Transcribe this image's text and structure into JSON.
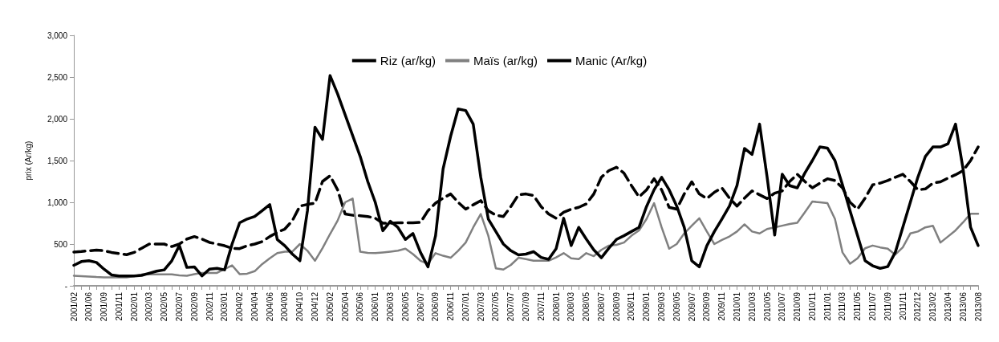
{
  "chart_data": {
    "type": "line",
    "ylabel": "prix (Ar/kg)",
    "legend": "top",
    "grid": false,
    "marker": "none",
    "categories": [
      "2001/02",
      null,
      "2001/06",
      null,
      "2001/09",
      null,
      "2001/11",
      null,
      "2002/01",
      null,
      "2002/03",
      null,
      "2002/05",
      null,
      "2002/07",
      null,
      "2002/09",
      null,
      "2002/11",
      null,
      "2003/01",
      null,
      "2004/02",
      null,
      "2004/04",
      null,
      "2004/06",
      null,
      "2004/08",
      null,
      "2004/10",
      null,
      "2004/12",
      null,
      "2005/02",
      null,
      "2005/04",
      null,
      "2005/06",
      null,
      "2006/01",
      null,
      "2006/03",
      null,
      "2006/05",
      null,
      "2006/07",
      null,
      "2006/09",
      null,
      "2006/11",
      null,
      "2007/01",
      null,
      "2007/03",
      null,
      "2007/05",
      null,
      "2007/07",
      null,
      "2007/09",
      null,
      "2007/11",
      null,
      "2008/01",
      null,
      "2008/03",
      null,
      "2008/05",
      null,
      "2008/07",
      null,
      "2008/09",
      null,
      "2008/11",
      null,
      "2009/01",
      null,
      "2009/03",
      null,
      "2009/05",
      null,
      "2009/07",
      null,
      "2009/09",
      null,
      "2009/11",
      null,
      "2010/01",
      null,
      "2010/03",
      null,
      "2010/05",
      null,
      "2010/07",
      null,
      "2010/09",
      null,
      "2010/11",
      null,
      "2011/01",
      null,
      "2011/03",
      null,
      "2011/05",
      null,
      "2011/07",
      null,
      "2011/09",
      null,
      "2011/11",
      null,
      "2012/12",
      null,
      "2013/02",
      null,
      "2013/04",
      null,
      "2013/06",
      null,
      "2013/08"
    ],
    "ylim": [
      0,
      3000
    ],
    "yticks": [
      {
        "value": 0,
        "label": "-"
      },
      {
        "value": 500,
        "label": "500"
      },
      {
        "value": 1000,
        "label": "1,000"
      },
      {
        "value": 1500,
        "label": "1,500"
      },
      {
        "value": 2000,
        "label": "2,000"
      },
      {
        "value": 2500,
        "label": "2,500"
      },
      {
        "value": 3000,
        "label": "3,000"
      }
    ],
    "series": [
      {
        "name": "Riz (ar/kg)",
        "color": "#000000",
        "line_style": "dashed",
        "values": [
          405,
          410,
          420,
          427,
          420,
          400,
          385,
          373,
          400,
          450,
          500,
          500,
          500,
          470,
          500,
          560,
          590,
          560,
          520,
          500,
          480,
          450,
          445,
          480,
          500,
          530,
          590,
          640,
          680,
          780,
          955,
          975,
          990,
          1250,
          1318,
          1150,
          860,
          845,
          840,
          830,
          810,
          750,
          750,
          755,
          755,
          755,
          760,
          900,
          990,
          1050,
          1100,
          1000,
          918,
          970,
          1020,
          900,
          845,
          830,
          950,
          1090,
          1100,
          1082,
          950,
          860,
          809,
          880,
          918,
          940,
          980,
          1100,
          1300,
          1380,
          1420,
          1350,
          1200,
          1064,
          1150,
          1282,
          1150,
          940,
          918,
          1100,
          1245,
          1100,
          1045,
          1120,
          1173,
          1050,
          955,
          1050,
          1136,
          1090,
          1045,
          1110,
          1136,
          1250,
          1336,
          1250,
          1173,
          1230,
          1282,
          1260,
          1173,
          1000,
          918,
          1050,
          1209,
          1230,
          1260,
          1300,
          1336,
          1250,
          1150,
          1160,
          1230,
          1245,
          1290,
          1330,
          1380,
          1500,
          1663
        ]
      },
      {
        "name": "Maïs (ar/kg)",
        "color": "#808080",
        "line_style": "solid",
        "values": [
          120,
          115,
          110,
          105,
          102,
          100,
          100,
          100,
          115,
          136,
          136,
          136,
          136,
          136,
          125,
          120,
          140,
          155,
          155,
          155,
          200,
          245,
          140,
          145,
          175,
          260,
          330,
          391,
          409,
          409,
          500,
          420,
          300,
          450,
          620,
          780,
          1000,
          1045,
          409,
          395,
          391,
          400,
          409,
          420,
          445,
          380,
          300,
          264,
          391,
          360,
          336,
          420,
          518,
          700,
          860,
          600,
          209,
          195,
          250,
          336,
          320,
          300,
          300,
          300,
          340,
          391,
          330,
          320,
          391,
          355,
          430,
          482,
          490,
          518,
          600,
          664,
          800,
          990,
          700,
          445,
          500,
          627,
          720,
          809,
          650,
          500,
          550,
          591,
          650,
          736,
          650,
          627,
          680,
          700,
          720,
          740,
          755,
          880,
          1009,
          1000,
          990,
          800,
          400,
          264,
          330,
          450,
          482,
          460,
          445,
          373,
          460,
          627,
          650,
          700,
          718,
          518,
          590,
          664,
          760,
          864,
          864
        ]
      },
      {
        "name": "Manic (Ar/kg)",
        "color": "#000000",
        "line_style": "solid",
        "values": [
          245,
          290,
          300,
          280,
          200,
          130,
          118,
          118,
          118,
          125,
          150,
          175,
          191,
          300,
          482,
          220,
          227,
          118,
          200,
          209,
          191,
          500,
          755,
          800,
          830,
          900,
          973,
          555,
          480,
          380,
          300,
          900,
          1900,
          1754,
          2518,
          2300,
          2050,
          1800,
          1550,
          1250,
          1000,
          660,
          773,
          700,
          555,
          627,
          400,
          227,
          600,
          1400,
          1791,
          2118,
          2100,
          1936,
          1300,
          800,
          650,
          500,
          420,
          370,
          380,
          409,
          340,
          318,
          445,
          809,
          482,
          700,
          560,
          430,
          336,
          450,
          555,
          600,
          650,
          700,
          950,
          1150,
          1300,
          1150,
          955,
          700,
          300,
          227,
          480,
          650,
          800,
          955,
          1200,
          1645,
          1573,
          1936,
          1300,
          609,
          1336,
          1200,
          1173,
          1350,
          1500,
          1663,
          1650,
          1500,
          1209,
          900,
          600,
          300,
          240,
          209,
          230,
          400,
          700,
          1000,
          1300,
          1550,
          1663,
          1663,
          1700,
          1936,
          1400,
          700,
          482
        ]
      }
    ]
  }
}
